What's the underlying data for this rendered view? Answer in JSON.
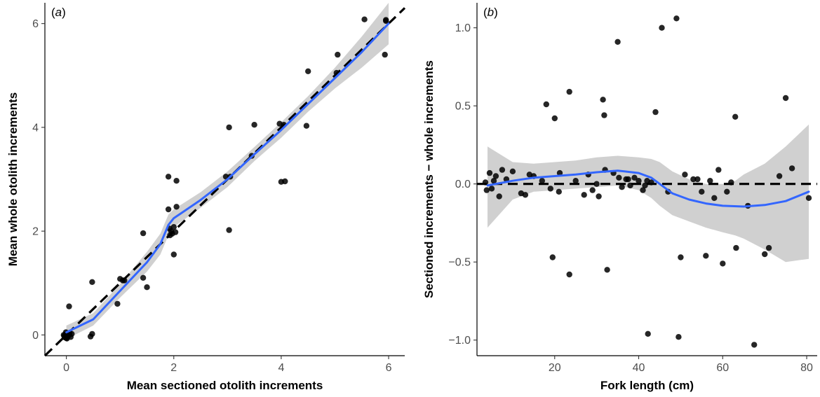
{
  "chart_data": [
    {
      "type": "scatter",
      "panel_label": "(a)",
      "xlabel": "Mean sectioned otolith increments",
      "ylabel": "Mean whole otolith increments",
      "xlim": [
        -0.4,
        6.3
      ],
      "ylim": [
        -0.4,
        6.4
      ],
      "xticks": [
        0,
        2,
        4,
        6
      ],
      "yticks": [
        0,
        2,
        4,
        6
      ],
      "grid": false,
      "legend": "none",
      "colors": {
        "points": "#000000",
        "smooth": "#3366ff",
        "ribbon": "#c8c8c8",
        "reference": "#000000"
      },
      "reference_line": {
        "style": "dashed",
        "slope": 1,
        "intercept": 0
      },
      "points": [
        [
          -0.05,
          0
        ],
        [
          -0.02,
          -0.05
        ],
        [
          0,
          0.02
        ],
        [
          0.02,
          -0.03
        ],
        [
          -0.04,
          -0.02
        ],
        [
          0.03,
          0.03
        ],
        [
          0,
          -0.06
        ],
        [
          0.05,
          0
        ],
        [
          0.08,
          -0.04
        ],
        [
          -0.01,
          0.05
        ],
        [
          0.02,
          0.01
        ],
        [
          0.04,
          -0.01
        ],
        [
          0.1,
          0.02
        ],
        [
          -0.03,
          -0.04
        ],
        [
          0.06,
          0.04
        ],
        [
          0.01,
          -0.07
        ],
        [
          0.05,
          0.55
        ],
        [
          0.48,
          1.02
        ],
        [
          0.48,
          0.02
        ],
        [
          0.45,
          -0.03
        ],
        [
          0.95,
          0.6
        ],
        [
          1.0,
          1.08
        ],
        [
          1.05,
          1.05
        ],
        [
          1.08,
          1.05
        ],
        [
          1.43,
          1.96
        ],
        [
          1.43,
          1.1
        ],
        [
          1.5,
          0.92
        ],
        [
          1.9,
          3.05
        ],
        [
          1.9,
          2.42
        ],
        [
          2.05,
          2.97
        ],
        [
          2.05,
          2.47
        ],
        [
          1.92,
          2.05
        ],
        [
          1.95,
          2.0
        ],
        [
          1.97,
          1.95
        ],
        [
          2.0,
          2.08
        ],
        [
          2.03,
          1.98
        ],
        [
          2.0,
          1.55
        ],
        [
          1.93,
          1.92
        ],
        [
          2.97,
          3.05
        ],
        [
          3.03,
          2.02
        ],
        [
          3.03,
          4.0
        ],
        [
          3.05,
          3.05
        ],
        [
          3.45,
          3.45
        ],
        [
          3.5,
          4.05
        ],
        [
          3.97,
          4.07
        ],
        [
          4.0,
          2.95
        ],
        [
          4.07,
          2.96
        ],
        [
          4.05,
          4.05
        ],
        [
          4.47,
          4.03
        ],
        [
          4.5,
          5.08
        ],
        [
          5.03,
          5.05
        ],
        [
          5.05,
          5.4
        ],
        [
          5.55,
          6.08
        ],
        [
          5.95,
          6.05
        ],
        [
          5.95,
          6.07
        ],
        [
          5.93,
          5.4
        ]
      ],
      "smooth": [
        [
          0,
          0.05
        ],
        [
          0.5,
          0.3
        ],
        [
          1,
          0.85
        ],
        [
          1.5,
          1.4
        ],
        [
          1.75,
          1.75
        ],
        [
          1.9,
          2.12
        ],
        [
          2,
          2.25
        ],
        [
          2.5,
          2.6
        ],
        [
          3,
          3.0
        ],
        [
          3.5,
          3.48
        ],
        [
          4,
          3.95
        ],
        [
          4.5,
          4.45
        ],
        [
          5,
          4.95
        ],
        [
          5.5,
          5.45
        ],
        [
          6,
          6.0
        ]
      ],
      "ribbon": [
        [
          0,
          -0.08,
          0.18
        ],
        [
          0.5,
          0.18,
          0.42
        ],
        [
          1,
          0.72,
          0.98
        ],
        [
          1.5,
          1.22,
          1.6
        ],
        [
          1.75,
          1.55,
          1.95
        ],
        [
          1.9,
          1.92,
          2.32
        ],
        [
          2,
          2.08,
          2.42
        ],
        [
          2.5,
          2.45,
          2.75
        ],
        [
          3,
          2.85,
          3.15
        ],
        [
          3.5,
          3.35,
          3.62
        ],
        [
          4,
          3.8,
          4.1
        ],
        [
          4.5,
          4.3,
          4.6
        ],
        [
          5,
          4.75,
          5.15
        ],
        [
          5.5,
          5.15,
          5.75
        ],
        [
          6,
          5.6,
          6.4
        ]
      ]
    },
    {
      "type": "scatter",
      "panel_label": "(b)",
      "xlabel": "Fork length (cm)",
      "ylabel": "Sectioned increments − whole increments",
      "xlim": [
        1.5,
        82.5
      ],
      "ylim": [
        -1.1,
        1.16
      ],
      "xticks": [
        20,
        40,
        60,
        80
      ],
      "yticks": [
        -1.0,
        -0.5,
        0.0,
        0.5,
        1.0
      ],
      "ytick_labels": [
        "−1.0",
        "−0.5",
        "0.0",
        "0.5",
        "1.0"
      ],
      "grid": false,
      "legend": "none",
      "colors": {
        "points": "#000000",
        "smooth": "#3366ff",
        "ribbon": "#c8c8c8",
        "reference": "#000000"
      },
      "reference_line": {
        "style": "dashed",
        "y": 0
      },
      "points": [
        [
          3.5,
          0.01
        ],
        [
          3.8,
          -0.04
        ],
        [
          4.5,
          0.07
        ],
        [
          5,
          -0.03
        ],
        [
          5.5,
          0.02
        ],
        [
          6,
          0.05
        ],
        [
          6.8,
          -0.08
        ],
        [
          7.5,
          0.09
        ],
        [
          8.5,
          0.03
        ],
        [
          10,
          0.08
        ],
        [
          12,
          -0.06
        ],
        [
          13,
          -0.07
        ],
        [
          14,
          0.06
        ],
        [
          15,
          0.05
        ],
        [
          17,
          0.02
        ],
        [
          18,
          0.51
        ],
        [
          19,
          -0.03
        ],
        [
          19.5,
          -0.47
        ],
        [
          20,
          0.42
        ],
        [
          21,
          -0.05
        ],
        [
          21.2,
          0.07
        ],
        [
          23.5,
          0.59
        ],
        [
          23.5,
          -0.58
        ],
        [
          25,
          0.02
        ],
        [
          27,
          -0.07
        ],
        [
          28,
          0.06
        ],
        [
          29,
          -0.04
        ],
        [
          30,
          0.0
        ],
        [
          30.5,
          -0.08
        ],
        [
          31.5,
          0.54
        ],
        [
          31.8,
          0.44
        ],
        [
          32,
          0.09
        ],
        [
          32.5,
          -0.55
        ],
        [
          34,
          0.07
        ],
        [
          35,
          0.91
        ],
        [
          35.3,
          0.04
        ],
        [
          36,
          -0.02
        ],
        [
          37,
          0.03
        ],
        [
          37.5,
          0.03
        ],
        [
          38,
          -0.01
        ],
        [
          39,
          0.04
        ],
        [
          40,
          0.02
        ],
        [
          41,
          -0.04
        ],
        [
          41.5,
          -0.01
        ],
        [
          42,
          0.02
        ],
        [
          42.2,
          -0.96
        ],
        [
          43,
          0.01
        ],
        [
          44,
          0.46
        ],
        [
          45.5,
          1.0
        ],
        [
          47,
          -0.05
        ],
        [
          49,
          1.06
        ],
        [
          49.5,
          -0.98
        ],
        [
          50,
          -0.47
        ],
        [
          51,
          0.06
        ],
        [
          53,
          0.03
        ],
        [
          54,
          0.03
        ],
        [
          55,
          -0.05
        ],
        [
          56,
          -0.46
        ],
        [
          57,
          0.02
        ],
        [
          58,
          -0.09
        ],
        [
          59,
          0.09
        ],
        [
          60,
          -0.51
        ],
        [
          61,
          -0.05
        ],
        [
          62,
          0.01
        ],
        [
          63,
          0.43
        ],
        [
          63.2,
          -0.41
        ],
        [
          66,
          -0.14
        ],
        [
          67.5,
          -1.03
        ],
        [
          70,
          -0.45
        ],
        [
          71,
          -0.41
        ],
        [
          73.5,
          0.05
        ],
        [
          75,
          0.55
        ],
        [
          76.5,
          0.1
        ],
        [
          80.5,
          -0.09
        ]
      ],
      "smooth": [
        [
          4,
          -0.01
        ],
        [
          10,
          0.02
        ],
        [
          15,
          0.04
        ],
        [
          20,
          0.05
        ],
        [
          25,
          0.06
        ],
        [
          30,
          0.075
        ],
        [
          35,
          0.085
        ],
        [
          40,
          0.07
        ],
        [
          43,
          0.04
        ],
        [
          45,
          0.0
        ],
        [
          48,
          -0.06
        ],
        [
          52,
          -0.1
        ],
        [
          56,
          -0.125
        ],
        [
          60,
          -0.14
        ],
        [
          65,
          -0.145
        ],
        [
          70,
          -0.135
        ],
        [
          75,
          -0.11
        ],
        [
          80.5,
          -0.05
        ]
      ],
      "ribbon": [
        [
          4,
          -0.28,
          0.24
        ],
        [
          10,
          -0.1,
          0.14
        ],
        [
          15,
          -0.05,
          0.13
        ],
        [
          20,
          -0.04,
          0.14
        ],
        [
          25,
          -0.03,
          0.15
        ],
        [
          30,
          -0.02,
          0.17
        ],
        [
          35,
          -0.01,
          0.18
        ],
        [
          40,
          -0.04,
          0.17
        ],
        [
          43,
          -0.09,
          0.16
        ],
        [
          45,
          -0.14,
          0.14
        ],
        [
          48,
          -0.2,
          0.08
        ],
        [
          52,
          -0.24,
          0.03
        ],
        [
          56,
          -0.28,
          0.0
        ],
        [
          60,
          -0.31,
          -0.0
        ],
        [
          63,
          -0.33,
          0.02
        ],
        [
          65,
          -0.35,
          0.06
        ],
        [
          70,
          -0.42,
          0.13
        ],
        [
          75,
          -0.5,
          0.24
        ],
        [
          80.5,
          -0.48,
          0.38
        ]
      ]
    }
  ]
}
